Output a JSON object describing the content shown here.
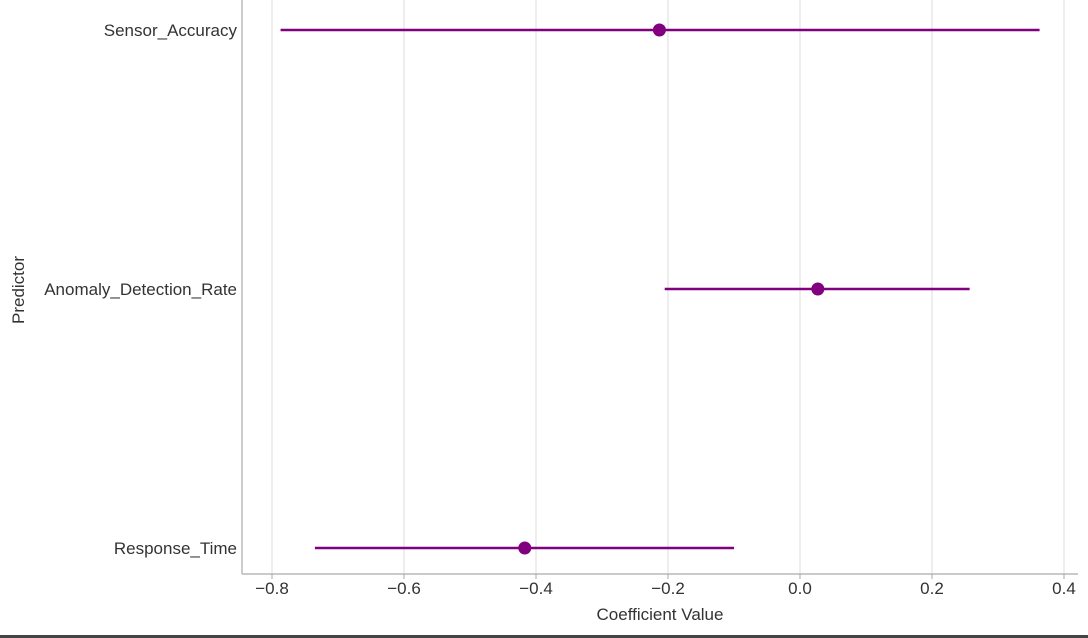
{
  "chart_data": {
    "type": "scatter",
    "subtype": "coefficient-plot",
    "title": "",
    "xlabel": "Coefficient Value",
    "ylabel": "Predictor",
    "xlim": [
      -0.85,
      0.41
    ],
    "xticks": [
      -0.8,
      -0.6,
      -0.4,
      -0.2,
      0.0,
      0.2,
      0.4
    ],
    "xtick_labels": [
      "−0.8",
      "−0.6",
      "−0.4",
      "−0.2",
      "0.0",
      "0.2",
      "0.4"
    ],
    "grid": "vertical",
    "series": [
      {
        "categories": [
          "Sensor_Accuracy",
          "Anomaly_Detection_Rate",
          "Response_Time"
        ],
        "estimate": [
          -0.213,
          0.027,
          -0.417
        ],
        "ci_low": [
          -0.787,
          -0.205,
          -0.735
        ],
        "ci_high": [
          0.363,
          0.257,
          -0.1
        ]
      }
    ],
    "colors": {
      "marker": "#800080",
      "highlight_label": "#8b0000",
      "default_label": "#333333",
      "grid": "#dddddd",
      "spine": "#aaaaaa"
    },
    "highlighted_category": "Response_Time"
  }
}
